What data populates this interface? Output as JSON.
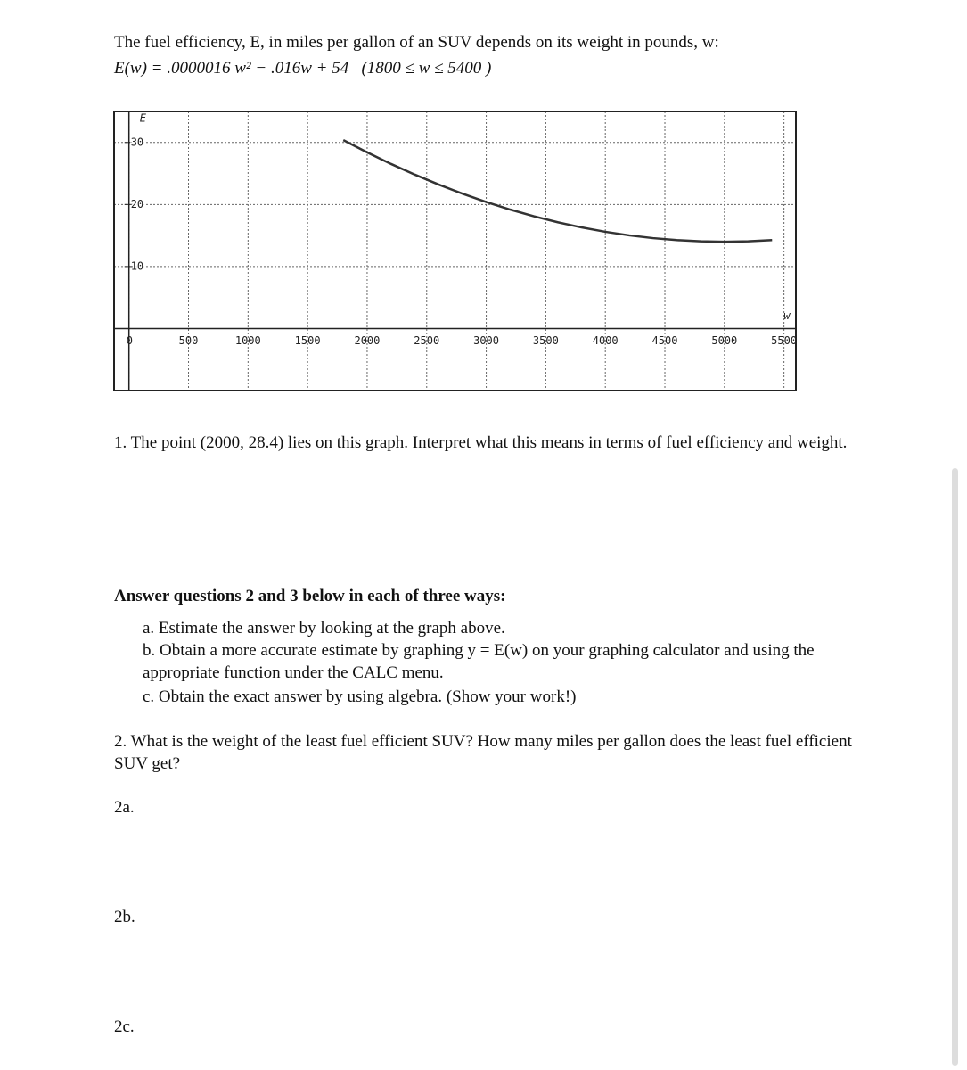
{
  "intro": "The fuel efficiency, E, in miles per gallon of an SUV depends on its weight in pounds, w:",
  "formula": "E(w) = .0000016 w² − .016w + 54",
  "domain": "(1800 ≤ w ≤ 5400 )",
  "chart_data": {
    "type": "line",
    "x_label": "w",
    "y_label": "E",
    "x": [
      1800,
      2000,
      2200,
      2400,
      2600,
      2800,
      3000,
      3200,
      3400,
      3600,
      3800,
      4000,
      4200,
      4400,
      4600,
      4800,
      5000,
      5200,
      5400
    ],
    "values": [
      30.384,
      28.4,
      26.544,
      24.816,
      23.216,
      21.744,
      20.4,
      19.184,
      18.096,
      17.136,
      16.304,
      15.6,
      15.024,
      14.576,
      14.256,
      14.064,
      14,
      14.064,
      14.256
    ],
    "xlim": [
      -125,
      5600
    ],
    "ylim": [
      -10,
      35
    ],
    "xticks": [
      0,
      500,
      1000,
      1500,
      2000,
      2500,
      3000,
      3500,
      4000,
      4500,
      5000,
      5500
    ],
    "yticks": [
      10,
      20,
      30
    ],
    "grid": true,
    "color": "#333333"
  },
  "question_1": "1. The point (2000, 28.4) lies on this graph.  Interpret what this means in terms of fuel efficiency and weight.",
  "instructions": {
    "heading": "Answer questions 2 and 3 below in each of three ways:",
    "items": [
      "a.  Estimate the answer by looking at the graph above.",
      "b.  Obtain a more accurate estimate by graphing  y = E(w)  on your graphing calculator and using the appropriate function under the CALC menu.",
      "c.  Obtain the exact answer by using algebra. (Show your work!)"
    ]
  },
  "question_2": "2.  What is the weight of the least fuel efficient SUV?  How many miles per gallon does the least fuel efficient SUV get?",
  "answers": [
    "2a.",
    "2b.",
    "2c."
  ]
}
